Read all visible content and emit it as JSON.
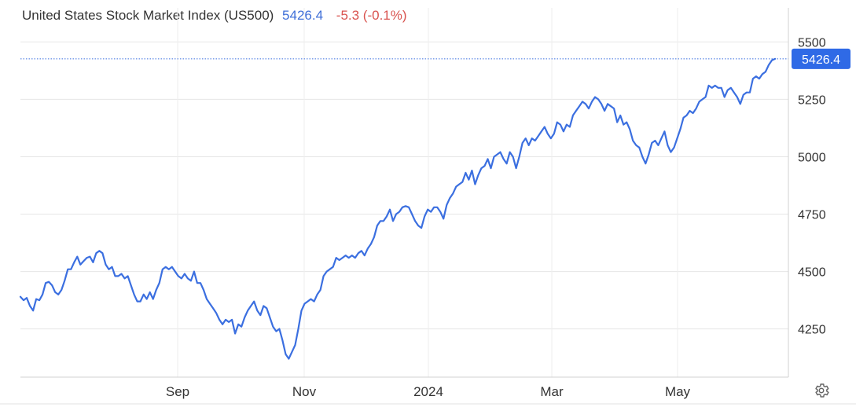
{
  "header": {
    "title": "United States Stock Market Index (US500)",
    "last_price": "5426.4",
    "change": "-5.3 (-0.1%)"
  },
  "colors": {
    "line": "#3b6fe0",
    "last_price_text": "#3f6fd8",
    "change_negative": "#d9534f",
    "grid": "#e6e6e6",
    "price_label_bg": "#2f6ae6"
  },
  "icons": {
    "settings": "gear-icon"
  },
  "chart_data": {
    "type": "line",
    "title": "United States Stock Market Index (US500)",
    "xlabel": "",
    "ylabel": "",
    "ylim": [
      4040,
      5580
    ],
    "y_ticks": [
      4250,
      4500,
      4750,
      5000,
      5250,
      5500
    ],
    "x_ticks": [
      "Sep",
      "Nov",
      "2024",
      "Mar",
      "May"
    ],
    "grid": true,
    "legend": "none",
    "last_value": 5426.4,
    "last_value_label": "5426.4",
    "series": [
      {
        "values": [
          4390,
          4375,
          4385,
          4350,
          4330,
          4380,
          4375,
          4400,
          4450,
          4455,
          4440,
          4410,
          4400,
          4420,
          4460,
          4510,
          4510,
          4540,
          4565,
          4530,
          4545,
          4560,
          4565,
          4540,
          4580,
          4590,
          4580,
          4530,
          4510,
          4520,
          4480,
          4480,
          4490,
          4470,
          4480,
          4440,
          4400,
          4370,
          4370,
          4400,
          4380,
          4410,
          4380,
          4420,
          4450,
          4510,
          4520,
          4510,
          4520,
          4500,
          4480,
          4470,
          4490,
          4470,
          4460,
          4500,
          4450,
          4450,
          4420,
          4380,
          4360,
          4340,
          4320,
          4290,
          4270,
          4290,
          4280,
          4290,
          4230,
          4270,
          4260,
          4300,
          4330,
          4350,
          4370,
          4330,
          4310,
          4350,
          4340,
          4300,
          4260,
          4240,
          4250,
          4200,
          4140,
          4120,
          4150,
          4180,
          4250,
          4330,
          4360,
          4370,
          4380,
          4370,
          4400,
          4420,
          4480,
          4500,
          4510,
          4520,
          4560,
          4550,
          4560,
          4570,
          4560,
          4570,
          4560,
          4580,
          4590,
          4570,
          4600,
          4620,
          4650,
          4700,
          4720,
          4720,
          4740,
          4770,
          4720,
          4750,
          4760,
          4780,
          4785,
          4780,
          4750,
          4720,
          4700,
          4690,
          4740,
          4770,
          4760,
          4780,
          4780,
          4760,
          4730,
          4790,
          4820,
          4840,
          4870,
          4880,
          4890,
          4930,
          4900,
          4940,
          4880,
          4920,
          4950,
          4960,
          4990,
          4950,
          5000,
          5010,
          5020,
          4990,
          4970,
          5020,
          5000,
          4950,
          5000,
          5060,
          5080,
          5050,
          5080,
          5070,
          5090,
          5110,
          5130,
          5100,
          5080,
          5100,
          5150,
          5140,
          5110,
          5140,
          5130,
          5180,
          5200,
          5220,
          5240,
          5230,
          5210,
          5240,
          5260,
          5250,
          5230,
          5200,
          5230,
          5220,
          5210,
          5150,
          5180,
          5140,
          5150,
          5120,
          5070,
          5050,
          5040,
          5000,
          4970,
          5010,
          5060,
          5070,
          5050,
          5080,
          5110,
          5050,
          5020,
          5040,
          5080,
          5120,
          5170,
          5180,
          5200,
          5190,
          5210,
          5240,
          5250,
          5260,
          5310,
          5300,
          5310,
          5300,
          5300,
          5260,
          5290,
          5300,
          5280,
          5260,
          5230,
          5270,
          5280,
          5280,
          5340,
          5350,
          5340,
          5360,
          5370,
          5400,
          5420,
          5426.4
        ]
      }
    ]
  }
}
